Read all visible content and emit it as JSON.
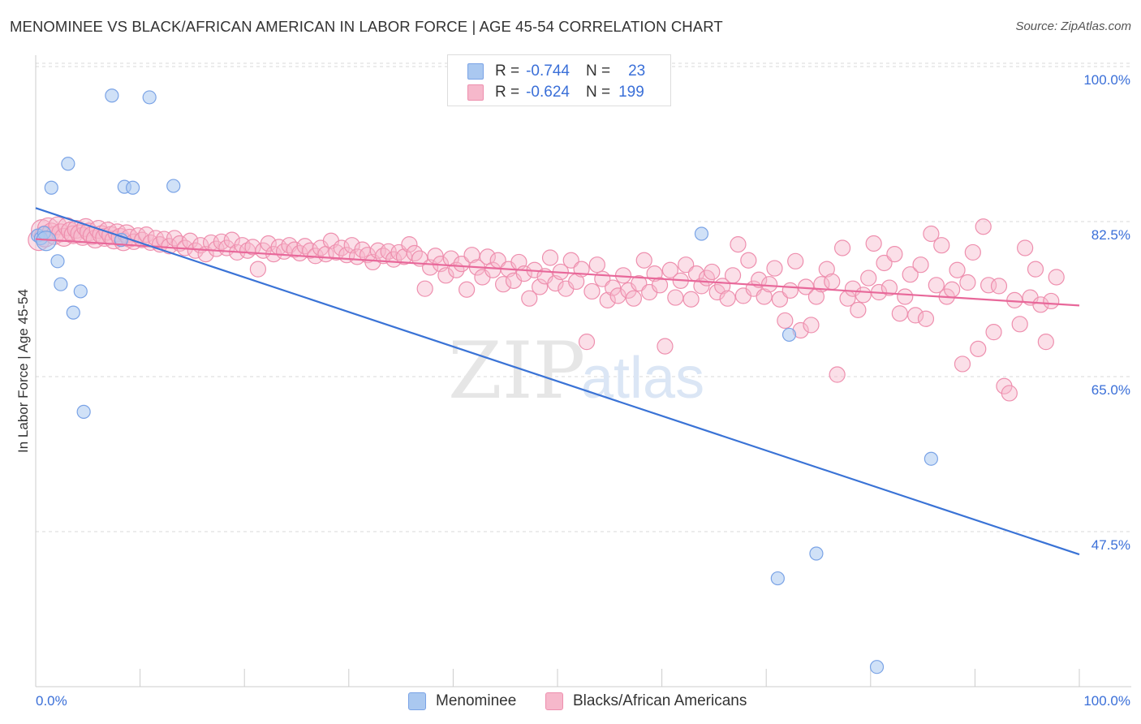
{
  "title": "MENOMINEE VS BLACK/AFRICAN AMERICAN IN LABOR FORCE | AGE 45-54 CORRELATION CHART",
  "source": "Source: ZipAtlas.com",
  "watermark": {
    "zip": "ZIP",
    "atlas": "atlas"
  },
  "colors": {
    "menominee_fill": "#aac8f0",
    "menominee_stroke": "#7aa3e6",
    "menominee_line": "#3a73d6",
    "black_fill": "#f6b8cb",
    "black_stroke": "#ee8fae",
    "black_line": "#e8689a",
    "axis_value": "#3a6fd8",
    "grid": "#d8d8d8"
  },
  "legend": {
    "rows": [
      {
        "r_label": "R =",
        "r_value": "-0.744",
        "n_label": "N =",
        "n_value": "23"
      },
      {
        "r_label": "R =",
        "r_value": "-0.624",
        "n_label": "N =",
        "n_value": "199"
      }
    ]
  },
  "bottom_legend": {
    "menominee": "Menominee",
    "black": "Blacks/African Americans"
  },
  "chart_data": {
    "type": "scatter",
    "ylabel": "In Labor Force | Age 45-54",
    "x_tick_labels": [
      "0.0%",
      "100.0%"
    ],
    "y_tick_labels": [
      "100.0%",
      "82.5%",
      "65.0%",
      "47.5%"
    ],
    "y_ticks": [
      100.0,
      82.5,
      65.0,
      47.5
    ],
    "xlim": [
      0,
      100
    ],
    "ylim": [
      34,
      102
    ],
    "grid": true,
    "series": [
      {
        "name": "Menominee",
        "trend": {
          "x": [
            0,
            100
          ],
          "y": [
            85.4,
            46.3
          ]
        },
        "points": [
          [
            0.2,
            82.3
          ],
          [
            0.5,
            82.0
          ],
          [
            0.8,
            82.6
          ],
          [
            1.5,
            87.7
          ],
          [
            2.1,
            79.4
          ],
          [
            2.4,
            76.8
          ],
          [
            3.1,
            90.4
          ],
          [
            3.6,
            73.6
          ],
          [
            4.3,
            76.0
          ],
          [
            4.6,
            62.4
          ],
          [
            7.3,
            98.1
          ],
          [
            8.2,
            81.8
          ],
          [
            8.5,
            87.8
          ],
          [
            9.3,
            87.7
          ],
          [
            10.9,
            97.9
          ],
          [
            13.2,
            87.9
          ],
          [
            63.8,
            82.5
          ],
          [
            72.2,
            71.1
          ],
          [
            71.1,
            43.6
          ],
          [
            74.8,
            46.4
          ],
          [
            85.8,
            57.1
          ],
          [
            80.6,
            33.6
          ],
          [
            1.0,
            81.7
          ]
        ]
      },
      {
        "name": "Blacks/African Americans",
        "trend": {
          "x": [
            0,
            100
          ],
          "y": [
            81.9,
            74.4
          ]
        },
        "points": [
          [
            0.3,
            81.8
          ],
          [
            0.6,
            82.9
          ],
          [
            0.9,
            82.2
          ],
          [
            1.2,
            83.1
          ],
          [
            1.5,
            82.7
          ],
          [
            1.8,
            82.3
          ],
          [
            2.1,
            83.4
          ],
          [
            2.4,
            82.6
          ],
          [
            2.7,
            82.1
          ],
          [
            3.0,
            83.3
          ],
          [
            3.3,
            82.8
          ],
          [
            3.6,
            82.4
          ],
          [
            3.9,
            83.0
          ],
          [
            4.2,
            82.5
          ],
          [
            4.5,
            82.2
          ],
          [
            4.8,
            83.2
          ],
          [
            5.1,
            82.7
          ],
          [
            5.4,
            82.3
          ],
          [
            5.7,
            81.9
          ],
          [
            6.0,
            83.0
          ],
          [
            6.3,
            82.4
          ],
          [
            6.6,
            82.1
          ],
          [
            6.9,
            82.8
          ],
          [
            7.2,
            82.3
          ],
          [
            7.5,
            81.8
          ],
          [
            7.8,
            82.6
          ],
          [
            8.1,
            82.1
          ],
          [
            8.4,
            81.6
          ],
          [
            8.7,
            82.5
          ],
          [
            9.0,
            82.0
          ],
          [
            9.4,
            81.6
          ],
          [
            9.8,
            82.3
          ],
          [
            10.2,
            81.8
          ],
          [
            10.6,
            82.4
          ],
          [
            11.0,
            81.5
          ],
          [
            11.5,
            82.0
          ],
          [
            11.9,
            81.3
          ],
          [
            12.3,
            81.9
          ],
          [
            12.8,
            81.1
          ],
          [
            13.3,
            82.0
          ],
          [
            13.8,
            81.4
          ],
          [
            14.3,
            80.9
          ],
          [
            14.8,
            81.7
          ],
          [
            15.3,
            80.6
          ],
          [
            15.8,
            81.2
          ],
          [
            16.3,
            80.2
          ],
          [
            16.8,
            81.5
          ],
          [
            17.3,
            80.8
          ],
          [
            17.8,
            81.6
          ],
          [
            18.3,
            80.9
          ],
          [
            18.8,
            81.8
          ],
          [
            19.3,
            80.4
          ],
          [
            19.8,
            81.2
          ],
          [
            20.3,
            80.6
          ],
          [
            20.8,
            81.0
          ],
          [
            21.3,
            78.5
          ],
          [
            21.8,
            80.6
          ],
          [
            22.3,
            81.4
          ],
          [
            22.8,
            80.2
          ],
          [
            23.3,
            81.0
          ],
          [
            23.8,
            80.5
          ],
          [
            24.3,
            81.2
          ],
          [
            24.8,
            80.7
          ],
          [
            25.3,
            80.3
          ],
          [
            25.8,
            81.1
          ],
          [
            26.3,
            80.6
          ],
          [
            26.8,
            80.0
          ],
          [
            27.3,
            80.9
          ],
          [
            27.8,
            80.2
          ],
          [
            28.3,
            81.7
          ],
          [
            28.8,
            80.4
          ],
          [
            29.3,
            80.9
          ],
          [
            29.8,
            80.1
          ],
          [
            30.3,
            81.2
          ],
          [
            30.8,
            79.9
          ],
          [
            31.3,
            80.7
          ],
          [
            31.8,
            80.1
          ],
          [
            32.3,
            79.3
          ],
          [
            32.8,
            80.6
          ],
          [
            33.3,
            80.0
          ],
          [
            33.8,
            80.5
          ],
          [
            34.3,
            79.6
          ],
          [
            34.8,
            80.4
          ],
          [
            35.3,
            79.9
          ],
          [
            35.8,
            81.3
          ],
          [
            36.3,
            80.3
          ],
          [
            36.8,
            79.7
          ],
          [
            37.3,
            76.3
          ],
          [
            37.8,
            78.7
          ],
          [
            38.3,
            80.0
          ],
          [
            38.8,
            79.1
          ],
          [
            39.3,
            77.8
          ],
          [
            39.8,
            79.7
          ],
          [
            40.3,
            78.4
          ],
          [
            40.8,
            79.1
          ],
          [
            41.3,
            76.2
          ],
          [
            41.8,
            80.1
          ],
          [
            42.3,
            78.7
          ],
          [
            42.8,
            77.6
          ],
          [
            43.3,
            79.9
          ],
          [
            43.8,
            78.4
          ],
          [
            44.3,
            79.5
          ],
          [
            44.8,
            76.8
          ],
          [
            45.3,
            78.5
          ],
          [
            45.8,
            77.2
          ],
          [
            46.3,
            79.3
          ],
          [
            46.8,
            78.0
          ],
          [
            47.3,
            75.2
          ],
          [
            47.8,
            78.4
          ],
          [
            48.3,
            76.5
          ],
          [
            48.8,
            77.7
          ],
          [
            49.3,
            79.8
          ],
          [
            49.8,
            76.9
          ],
          [
            50.3,
            78.2
          ],
          [
            50.8,
            76.3
          ],
          [
            51.3,
            79.5
          ],
          [
            51.8,
            77.1
          ],
          [
            52.3,
            78.5
          ],
          [
            52.8,
            70.3
          ],
          [
            53.3,
            76.0
          ],
          [
            53.8,
            79.0
          ],
          [
            54.3,
            77.4
          ],
          [
            54.8,
            75.0
          ],
          [
            55.3,
            76.4
          ],
          [
            55.8,
            75.5
          ],
          [
            56.3,
            77.8
          ],
          [
            56.8,
            76.1
          ],
          [
            57.3,
            75.2
          ],
          [
            57.8,
            76.9
          ],
          [
            58.3,
            79.5
          ],
          [
            58.8,
            75.9
          ],
          [
            59.3,
            78.0
          ],
          [
            59.8,
            76.7
          ],
          [
            60.3,
            69.8
          ],
          [
            60.8,
            78.4
          ],
          [
            61.3,
            75.3
          ],
          [
            61.8,
            77.2
          ],
          [
            62.3,
            79.0
          ],
          [
            62.8,
            75.1
          ],
          [
            63.3,
            78.0
          ],
          [
            63.8,
            76.6
          ],
          [
            64.3,
            77.5
          ],
          [
            64.8,
            78.2
          ],
          [
            65.3,
            75.9
          ],
          [
            65.8,
            76.6
          ],
          [
            66.3,
            75.2
          ],
          [
            66.8,
            77.8
          ],
          [
            67.3,
            81.3
          ],
          [
            67.8,
            75.5
          ],
          [
            68.3,
            79.5
          ],
          [
            68.8,
            76.3
          ],
          [
            69.3,
            77.3
          ],
          [
            69.8,
            75.4
          ],
          [
            70.3,
            76.8
          ],
          [
            70.8,
            78.6
          ],
          [
            71.3,
            75.1
          ],
          [
            71.8,
            72.7
          ],
          [
            72.3,
            76.1
          ],
          [
            72.8,
            79.4
          ],
          [
            73.3,
            71.6
          ],
          [
            73.8,
            76.5
          ],
          [
            74.3,
            72.2
          ],
          [
            74.8,
            75.4
          ],
          [
            75.3,
            76.8
          ],
          [
            75.8,
            78.5
          ],
          [
            76.3,
            77.1
          ],
          [
            76.8,
            66.6
          ],
          [
            77.3,
            80.9
          ],
          [
            77.8,
            75.2
          ],
          [
            78.3,
            76.3
          ],
          [
            78.8,
            73.9
          ],
          [
            79.3,
            75.6
          ],
          [
            79.8,
            77.5
          ],
          [
            80.3,
            81.4
          ],
          [
            80.8,
            75.9
          ],
          [
            81.3,
            79.2
          ],
          [
            81.8,
            76.4
          ],
          [
            82.3,
            80.2
          ],
          [
            82.8,
            73.5
          ],
          [
            83.3,
            75.4
          ],
          [
            83.8,
            77.9
          ],
          [
            84.3,
            73.3
          ],
          [
            84.8,
            79.0
          ],
          [
            85.3,
            72.9
          ],
          [
            85.8,
            82.5
          ],
          [
            86.3,
            76.7
          ],
          [
            86.8,
            81.2
          ],
          [
            87.3,
            75.4
          ],
          [
            87.8,
            76.2
          ],
          [
            88.3,
            78.4
          ],
          [
            88.8,
            67.8
          ],
          [
            89.3,
            77.0
          ],
          [
            89.8,
            80.4
          ],
          [
            90.3,
            69.5
          ],
          [
            90.8,
            83.3
          ],
          [
            91.3,
            76.7
          ],
          [
            91.8,
            71.4
          ],
          [
            92.3,
            76.6
          ],
          [
            92.8,
            65.3
          ],
          [
            93.3,
            64.5
          ],
          [
            93.8,
            75.0
          ],
          [
            94.3,
            72.3
          ],
          [
            94.8,
            80.9
          ],
          [
            95.3,
            75.3
          ],
          [
            95.8,
            78.5
          ],
          [
            96.3,
            74.5
          ],
          [
            96.8,
            70.3
          ],
          [
            97.3,
            74.9
          ],
          [
            97.8,
            77.6
          ]
        ]
      }
    ]
  }
}
